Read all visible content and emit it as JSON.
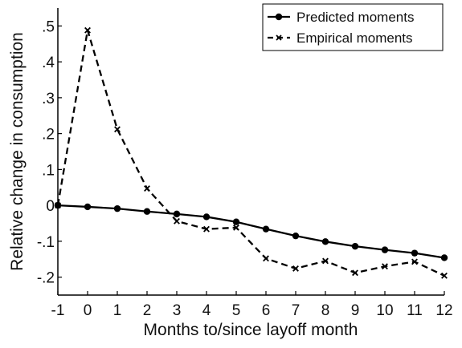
{
  "chart_data": {
    "type": "line",
    "xlabel": "Months to/since layoff month",
    "ylabel": "Relative change in consumption",
    "x": [
      -1,
      0,
      1,
      2,
      3,
      4,
      5,
      6,
      7,
      8,
      9,
      10,
      11,
      12
    ],
    "xlim": [
      -1,
      12
    ],
    "ylim": [
      -0.25,
      0.55
    ],
    "x_ticks": [
      "-1",
      "0",
      "1",
      "2",
      "3",
      "4",
      "5",
      "6",
      "7",
      "8",
      "9",
      "10",
      "11",
      "12"
    ],
    "y_ticks": [
      {
        "value": 0.5,
        "label": ".5"
      },
      {
        "value": 0.4,
        "label": ".4"
      },
      {
        "value": 0.3,
        "label": ".3"
      },
      {
        "value": 0.2,
        "label": ".2"
      },
      {
        "value": 0.1,
        "label": ".1"
      },
      {
        "value": 0.0,
        "label": "0"
      },
      {
        "value": -0.1,
        "label": "-.1"
      },
      {
        "value": -0.2,
        "label": "-.2"
      }
    ],
    "grid": false,
    "legend_position": "top-right",
    "series": [
      {
        "name": "Predicted moments",
        "style": "solid",
        "marker": "dot",
        "color": "#000000",
        "values": [
          0.0,
          -0.004,
          -0.009,
          -0.017,
          -0.024,
          -0.032,
          -0.046,
          -0.066,
          -0.085,
          -0.101,
          -0.114,
          -0.124,
          -0.133,
          -0.146
        ]
      },
      {
        "name": "Empirical moments",
        "style": "dashed",
        "marker": "x",
        "color": "#000000",
        "values": [
          0.0,
          0.488,
          0.212,
          0.047,
          -0.044,
          -0.066,
          -0.062,
          -0.148,
          -0.176,
          -0.155,
          -0.188,
          -0.17,
          -0.157,
          -0.196
        ]
      }
    ]
  }
}
